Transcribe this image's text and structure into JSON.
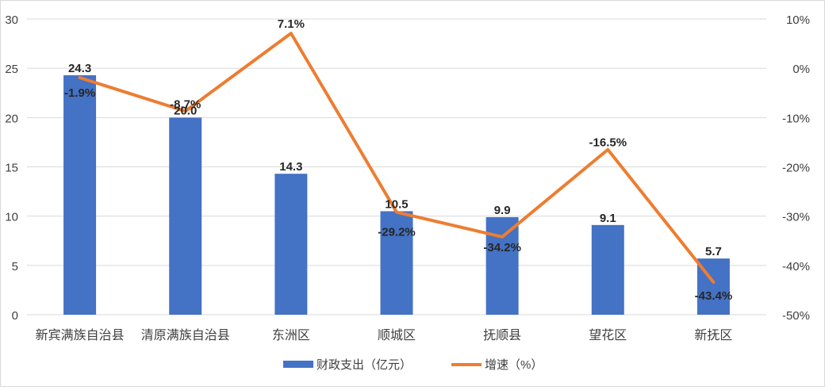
{
  "chart_data": {
    "type": "bar",
    "categories": [
      "新宾满族自治县",
      "清原满族自治县",
      "东洲区",
      "顺城区",
      "抚顺县",
      "望花区",
      "新抚区"
    ],
    "series": [
      {
        "name": "财政支出（亿元）",
        "type": "bar",
        "axis": "left",
        "values": [
          24.3,
          20.0,
          14.3,
          10.5,
          9.9,
          9.1,
          5.7
        ],
        "labels": [
          "24.3",
          "20.0",
          "14.3",
          "10.5",
          "9.9",
          "9.1",
          "5.7"
        ],
        "color": "#4472c4"
      },
      {
        "name": "增速（%）",
        "type": "line",
        "axis": "right",
        "values": [
          -1.9,
          -8.7,
          7.1,
          -29.2,
          -34.2,
          -16.5,
          -43.4
        ],
        "labels": [
          "-1.9%",
          "-8.7%",
          "7.1%",
          "-29.2%",
          "-34.2%",
          "-16.5%",
          "-43.4%"
        ],
        "color": "#ed7d31"
      }
    ],
    "y_left": {
      "range": [
        0,
        30
      ],
      "ticks": [
        0,
        5,
        10,
        15,
        20,
        25,
        30
      ],
      "tick_labels": [
        "0",
        "5",
        "10",
        "15",
        "20",
        "25",
        "30"
      ]
    },
    "y_right": {
      "range": [
        -50,
        10
      ],
      "ticks": [
        -50,
        -40,
        -30,
        -20,
        -10,
        0,
        10
      ],
      "tick_labels": [
        "-50%",
        "-40%",
        "-30%",
        "-20%",
        "-10%",
        "0%",
        "10%"
      ]
    },
    "grid": true,
    "legend": "bottom",
    "title": "",
    "gridline_color": "#d9d9d9",
    "text_color": "#404040",
    "label_color": "#262626"
  }
}
